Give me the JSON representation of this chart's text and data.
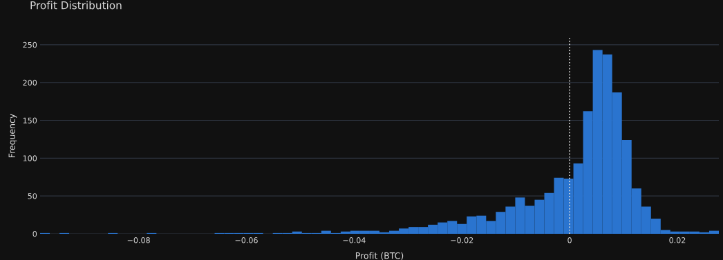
{
  "chart_data": {
    "type": "histogram",
    "title": "Profit Distribution",
    "xlabel": "Profit (BTC)",
    "ylabel": "Frequency",
    "bins": [
      -0.0983,
      -0.0965,
      -0.0947,
      -0.0929,
      -0.0911,
      -0.0893,
      -0.0875,
      -0.0857,
      -0.0839,
      -0.0821,
      -0.0803,
      -0.0785,
      -0.0767,
      -0.0749,
      -0.0731,
      -0.0713,
      -0.0695,
      -0.0677,
      -0.0659,
      -0.0641,
      -0.0623,
      -0.0605,
      -0.0587,
      -0.0569,
      -0.0551,
      -0.0533,
      -0.0515,
      -0.0497,
      -0.0479,
      -0.0461,
      -0.0443,
      -0.0425,
      -0.0407,
      -0.0389,
      -0.0371,
      -0.0353,
      -0.0335,
      -0.0317,
      -0.0299,
      -0.0281,
      -0.0263,
      -0.0245,
      -0.0227,
      -0.0209,
      -0.0191,
      -0.0173,
      -0.0155,
      -0.0137,
      -0.0119,
      -0.0101,
      -0.0083,
      -0.0065,
      -0.0047,
      -0.0029,
      -0.0011,
      0.0007,
      0.0025,
      0.0043,
      0.0061,
      0.0079,
      0.0097,
      0.0115,
      0.0133,
      0.0151,
      0.0169,
      0.0187,
      0.0205,
      0.0223,
      0.0241,
      0.0259,
      0.0277
    ],
    "values": [
      1,
      0,
      1,
      0,
      0,
      0,
      0,
      1,
      0,
      0,
      0,
      1,
      0,
      0,
      0,
      0,
      0,
      0,
      1,
      1,
      1,
      1,
      1,
      0,
      1,
      1,
      3,
      1,
      1,
      4,
      1,
      3,
      4,
      4,
      4,
      2,
      4,
      7,
      9,
      9,
      12,
      15,
      17,
      13,
      23,
      24,
      17,
      29,
      36,
      48,
      37,
      45,
      54,
      74,
      73,
      93,
      162,
      243,
      237,
      187,
      124,
      60,
      36,
      20,
      5,
      3,
      3,
      3,
      2,
      4
    ],
    "color": "#2a74cf",
    "xlim": [
      -0.0983,
      0.0277
    ],
    "ylim": [
      0,
      259
    ],
    "xticks": [
      {
        "value": -0.08,
        "label": "−0.08"
      },
      {
        "value": -0.06,
        "label": "−0.06"
      },
      {
        "value": -0.04,
        "label": "−0.04"
      },
      {
        "value": -0.02,
        "label": "−0.02"
      },
      0,
      0.02
    ],
    "yticks": [
      0,
      50,
      100,
      150,
      200,
      250
    ],
    "grid": "y",
    "legend": false,
    "ref_lines": [
      {
        "axis": "x",
        "value": 0,
        "color": "#dddddd",
        "line_style": "dotted"
      }
    ]
  }
}
